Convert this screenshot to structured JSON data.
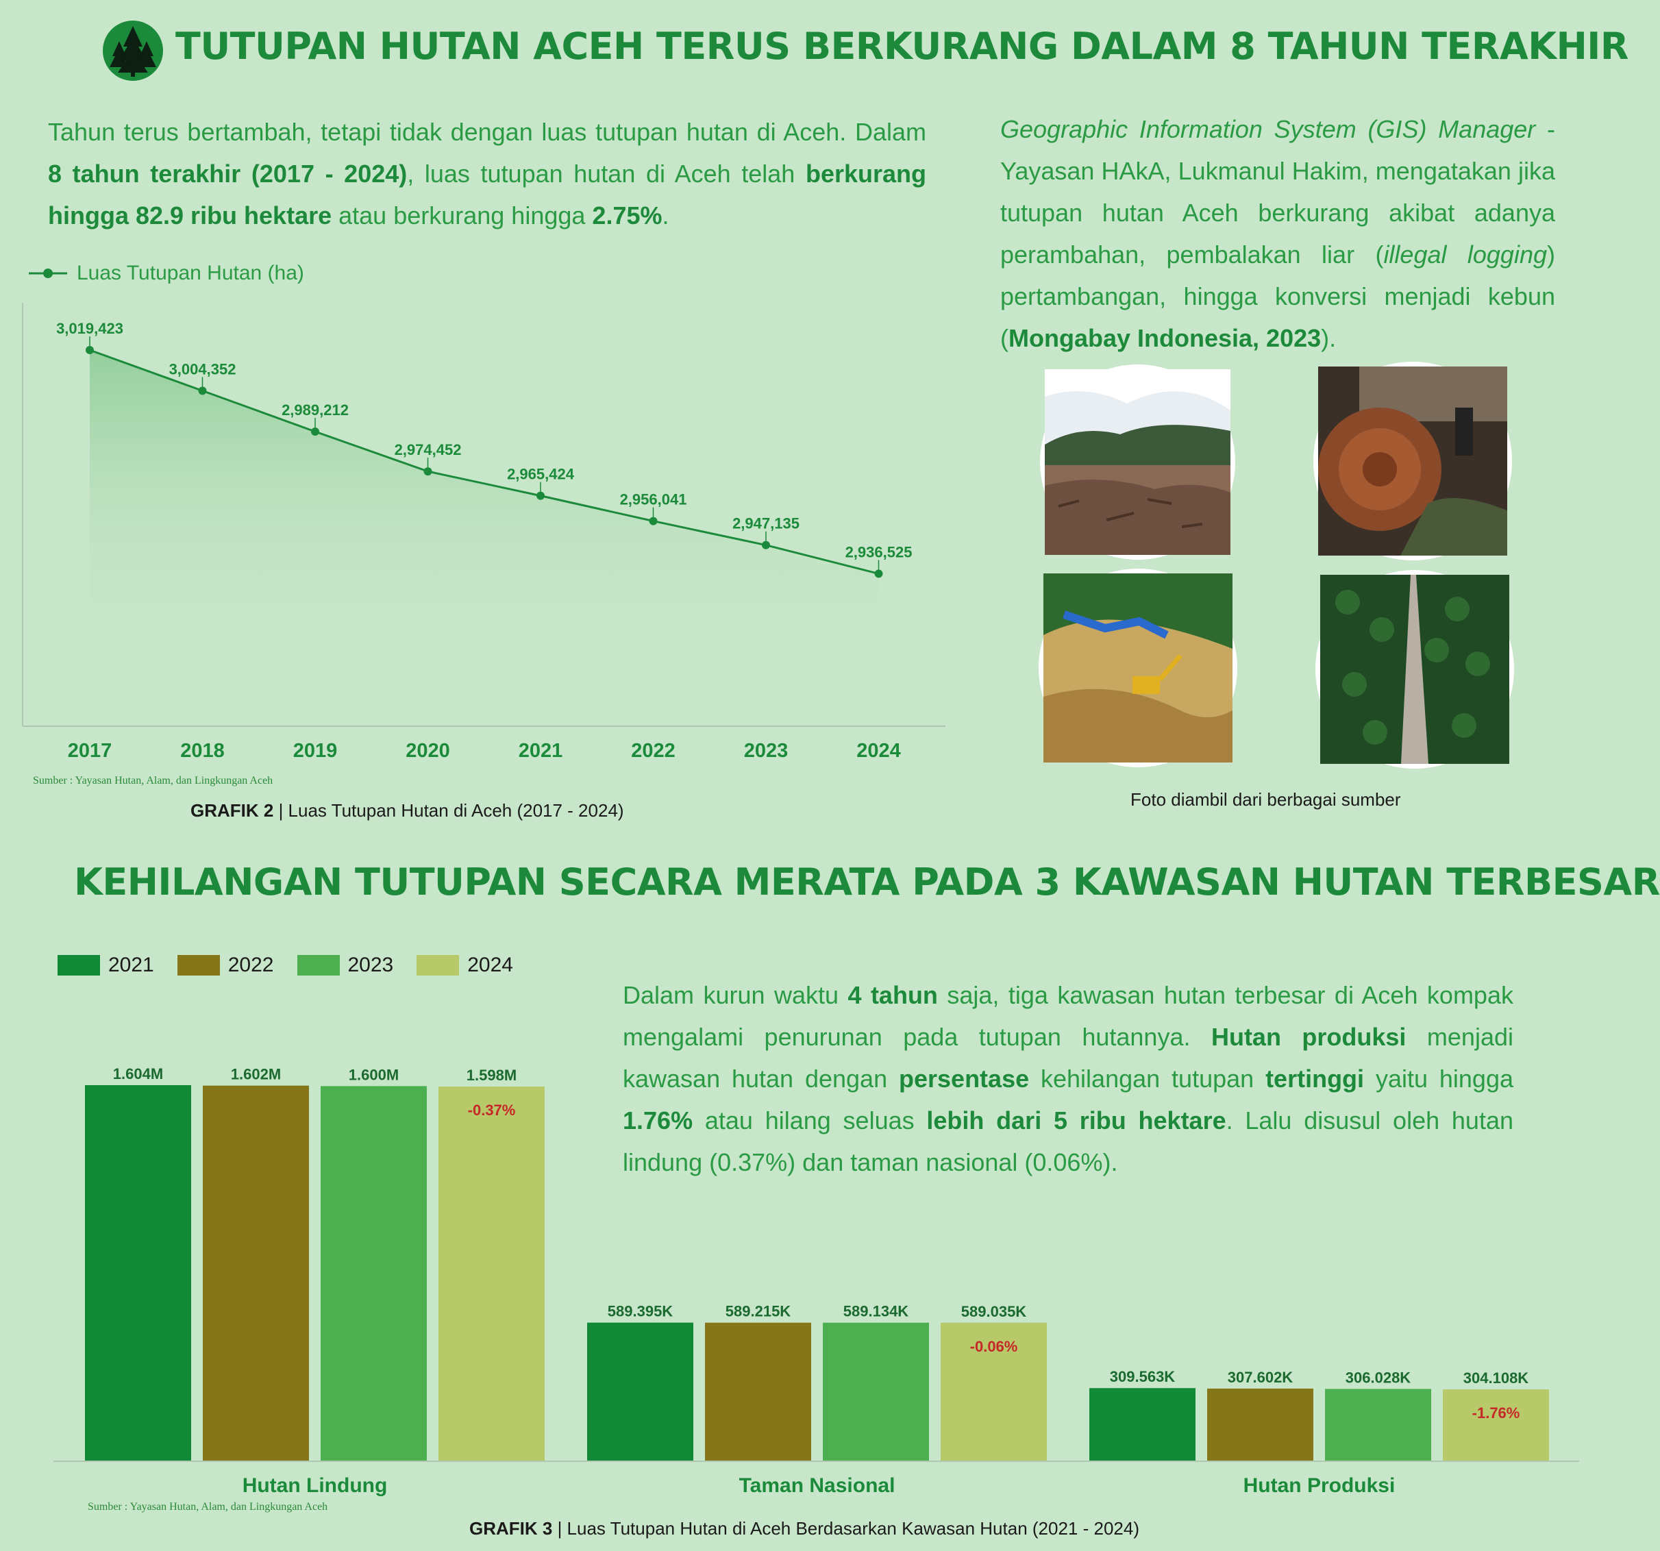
{
  "header": {
    "title": "TUTUPAN HUTAN ACEH TERUS BERKURANG DALAM 8 TAHUN TERAKHIR",
    "logo_icon": "forest-trees-icon"
  },
  "intro": {
    "p1": "Tahun terus bertambah, tetapi tidak dengan luas tutupan hutan di Aceh. Dalam ",
    "b1": "8 tahun terakhir (2017 - 2024)",
    "p2": ", luas tutupan hutan di Aceh telah ",
    "b2": "berkurang hingga 82.9 ribu hektare",
    "p3": " atau berkurang hingga ",
    "b3": "2.75%",
    "p4": "."
  },
  "quote": {
    "i1": "Geographic Information System (GIS) Manager",
    "p1": " - Yayasan HAkA, Lukmanul Hakim, mengatakan jika tutupan hutan Aceh berkurang akibat adanya perambahan, pembalakan liar (",
    "i2": "illegal logging",
    "p2": ") pertambangan, hingga konversi menjadi kebun (",
    "b1": "Mongabay Indonesia, 2023",
    "p3": ")."
  },
  "photos": {
    "caption": "Foto diambil dari berbagai sumber",
    "items": [
      "deforested-land-photo",
      "logging-photo",
      "mining-excavator-photo",
      "palm-plantation-photo"
    ]
  },
  "chart1": {
    "caption_bold": "GRAFIK 2",
    "caption_rest": " | Luas Tutupan Hutan  di Aceh (2017 - 2024)",
    "source": "Sumber : Yayasan Hutan, Alam, dan Lingkungan Aceh"
  },
  "section2": {
    "title": "KEHILANGAN TUTUPAN SECARA MERATA PADA 3 KAWASAN HUTAN TERBESAR",
    "p1": "Dalam kurun waktu ",
    "b1": "4 tahun",
    "p2": " saja, tiga kawasan hutan terbesar di Aceh kompak mengalami penurunan pada tutupan hutannya. ",
    "b2": "Hutan produksi",
    "p3": " menjadi kawasan hutan dengan ",
    "b3": "persentase",
    "p4": " kehilangan tutupan ",
    "b4": "tertinggi",
    "p5": " yaitu hingga ",
    "b5": "1.76%",
    "p6": " atau hilang seluas ",
    "b6": "lebih dari 5 ribu hektare",
    "p7": ". Lalu disusul oleh hutan lindung (0.37%) dan taman nasional (0.06%)."
  },
  "chart2": {
    "caption_bold": "GRAFIK 3",
    "caption_rest": " | Luas Tutupan Hutan  di Aceh Berdasarkan Kawasan Hutan (2021 - 2024)",
    "source": "Sumber : Yayasan Hutan, Alam, dan Lingkungan Aceh"
  },
  "chart_data": [
    {
      "type": "line",
      "title": "",
      "legend": "Luas Tutupan Hutan (ha)",
      "legend_position": "top-left",
      "x": [
        "2017",
        "2018",
        "2019",
        "2020",
        "2021",
        "2022",
        "2023",
        "2024"
      ],
      "values": [
        3019423,
        3004352,
        2989212,
        2974452,
        2965424,
        2956041,
        2947135,
        2936525
      ],
      "labels": [
        "3,019,423",
        "3,004,352",
        "2,989,212",
        "2,974,452",
        "2,965,424",
        "2,956,041",
        "2,947,135",
        "2,936,525"
      ],
      "ylim": [
        2880000,
        3040000
      ],
      "grid": false,
      "color": "#1b8a3a"
    },
    {
      "type": "bar",
      "categories": [
        "Hutan Lindung",
        "Taman Nasional",
        "Hutan Produksi"
      ],
      "legend_position": "top-left",
      "series": [
        {
          "name": "2021",
          "color": "#108a36",
          "values": [
            1604000,
            589395,
            309563
          ],
          "labels": [
            "1.604M",
            "589.395K",
            "309.563K"
          ]
        },
        {
          "name": "2022",
          "color": "#857619",
          "values": [
            1602000,
            589215,
            307602
          ],
          "labels": [
            "1.602M",
            "589.215K",
            "307.602K"
          ]
        },
        {
          "name": "2023",
          "color": "#4caf50",
          "values": [
            1600000,
            589134,
            306028
          ],
          "labels": [
            "1.600M",
            "589.134K",
            "306.028K"
          ]
        },
        {
          "name": "2024",
          "color": "#b8c96a",
          "values": [
            1598000,
            589035,
            304108
          ],
          "labels": [
            "1.598M",
            "589.035K",
            "304.108K"
          ]
        }
      ],
      "change_labels": [
        "-0.37%",
        "-0.06%",
        "-1.76%"
      ],
      "change_color": "#c62828",
      "ylim": [
        0,
        1604000
      ],
      "grid": false
    }
  ]
}
